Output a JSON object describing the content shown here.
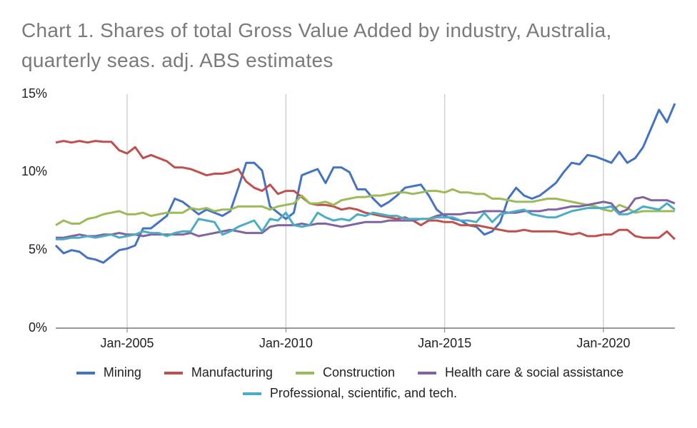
{
  "chart_data": {
    "type": "line",
    "title": "Chart 1. Shares of total Gross Value Added by industry, Australia, quarterly seas. adj. ABS estimates",
    "x": [
      2002.75,
      2003,
      2003.25,
      2003.5,
      2003.75,
      2004,
      2004.25,
      2004.5,
      2004.75,
      2005,
      2005.25,
      2005.5,
      2005.75,
      2006,
      2006.25,
      2006.5,
      2006.75,
      2007,
      2007.25,
      2007.5,
      2007.75,
      2008,
      2008.25,
      2008.5,
      2008.75,
      2009,
      2009.25,
      2009.5,
      2009.75,
      2010,
      2010.25,
      2010.5,
      2010.75,
      2011,
      2011.25,
      2011.5,
      2011.75,
      2012,
      2012.25,
      2012.5,
      2012.75,
      2013,
      2013.25,
      2013.5,
      2013.75,
      2014,
      2014.25,
      2014.5,
      2014.75,
      2015,
      2015.25,
      2015.5,
      2015.75,
      2016,
      2016.25,
      2016.5,
      2016.75,
      2017,
      2017.25,
      2017.5,
      2017.75,
      2018,
      2018.25,
      2018.5,
      2018.75,
      2019,
      2019.25,
      2019.5,
      2019.75,
      2020,
      2020.25,
      2020.5,
      2020.75,
      2021,
      2021.25,
      2021.5,
      2021.75,
      2022,
      2022.25
    ],
    "xlim": [
      2002.75,
      2022.25
    ],
    "xticks": [
      {
        "value": 2005,
        "label": "Jan-2005"
      },
      {
        "value": 2010,
        "label": "Jan-2010"
      },
      {
        "value": 2015,
        "label": "Jan-2015"
      },
      {
        "value": 2020,
        "label": "Jan-2020"
      }
    ],
    "ylim": [
      0,
      15
    ],
    "yticks": [
      {
        "value": 0,
        "label": "0%"
      },
      {
        "value": 5,
        "label": "5%"
      },
      {
        "value": 10,
        "label": "10%"
      },
      {
        "value": 15,
        "label": "15%"
      }
    ],
    "grid": "x",
    "series": [
      {
        "name": "Mining",
        "color": "#4472c4",
        "values": [
          5.3,
          4.8,
          5.0,
          4.9,
          4.5,
          4.4,
          4.2,
          4.6,
          5.0,
          5.1,
          5.3,
          6.4,
          6.4,
          6.8,
          7.2,
          8.3,
          8.1,
          7.7,
          7.3,
          7.6,
          7.4,
          7.2,
          7.5,
          9.0,
          10.6,
          10.6,
          10.1,
          7.8,
          7.4,
          7.0,
          7.4,
          9.8,
          10.0,
          10.2,
          9.3,
          10.3,
          10.3,
          10.0,
          8.9,
          8.9,
          8.3,
          7.8,
          8.1,
          8.5,
          9.0,
          9.1,
          9.2,
          8.5,
          7.6,
          7.2,
          7.0,
          6.9,
          6.6,
          6.5,
          6.0,
          6.2,
          6.8,
          8.3,
          9.0,
          8.5,
          8.3,
          8.5,
          8.9,
          9.3,
          10.0,
          10.6,
          10.5,
          11.1,
          11.0,
          10.8,
          10.6,
          11.3,
          10.6,
          10.9,
          11.6,
          12.8,
          14.0,
          13.2,
          14.4
        ]
      },
      {
        "name": "Manufacturing",
        "color": "#c0504d",
        "values": [
          11.9,
          12.0,
          11.9,
          12.0,
          11.9,
          12.0,
          11.95,
          11.95,
          11.4,
          11.2,
          11.6,
          10.9,
          11.1,
          10.9,
          10.7,
          10.3,
          10.3,
          10.2,
          10.0,
          9.8,
          9.9,
          9.9,
          10.0,
          10.2,
          9.4,
          9.0,
          8.8,
          9.2,
          8.6,
          8.8,
          8.8,
          8.4,
          8.0,
          7.9,
          7.9,
          7.8,
          7.6,
          7.7,
          7.6,
          7.4,
          7.3,
          7.2,
          7.1,
          7.0,
          7.1,
          6.9,
          6.6,
          6.9,
          6.9,
          6.8,
          6.8,
          6.6,
          6.6,
          6.6,
          6.5,
          6.4,
          6.3,
          6.2,
          6.2,
          6.3,
          6.2,
          6.2,
          6.2,
          6.2,
          6.1,
          6.0,
          6.1,
          5.9,
          5.9,
          6.0,
          6.0,
          6.3,
          6.3,
          5.9,
          5.8,
          5.8,
          5.8,
          6.2,
          5.7
        ]
      },
      {
        "name": "Construction",
        "color": "#9bbb59",
        "values": [
          6.6,
          6.9,
          6.7,
          6.7,
          7.0,
          7.1,
          7.3,
          7.4,
          7.5,
          7.3,
          7.3,
          7.4,
          7.2,
          7.3,
          7.4,
          7.4,
          7.4,
          7.7,
          7.6,
          7.7,
          7.5,
          7.6,
          7.6,
          7.8,
          7.8,
          7.8,
          7.8,
          7.6,
          7.8,
          7.9,
          8.0,
          8.5,
          8.0,
          8.0,
          8.1,
          7.9,
          8.2,
          8.3,
          8.4,
          8.4,
          8.5,
          8.5,
          8.6,
          8.7,
          8.7,
          8.6,
          8.7,
          8.8,
          8.8,
          8.7,
          8.9,
          8.7,
          8.7,
          8.6,
          8.6,
          8.3,
          8.3,
          8.2,
          8.1,
          8.1,
          8.1,
          8.2,
          8.3,
          8.3,
          8.2,
          8.1,
          8.0,
          7.9,
          7.8,
          7.6,
          7.5,
          7.9,
          7.7,
          7.4,
          7.5,
          7.5,
          7.5,
          7.5,
          7.5
        ]
      },
      {
        "name": "Health care & social assistance",
        "color": "#8064a2",
        "values": [
          5.8,
          5.8,
          5.9,
          6.0,
          5.9,
          5.9,
          6.0,
          6.0,
          6.1,
          6.0,
          6.0,
          5.9,
          6.0,
          6.0,
          6.0,
          6.0,
          6.0,
          6.1,
          5.9,
          6.0,
          6.1,
          6.2,
          6.3,
          6.2,
          6.1,
          6.1,
          6.1,
          6.5,
          6.6,
          6.6,
          6.6,
          6.7,
          6.6,
          6.7,
          6.7,
          6.6,
          6.5,
          6.6,
          6.7,
          6.8,
          6.8,
          6.8,
          6.9,
          6.9,
          6.9,
          6.9,
          7.0,
          7.0,
          7.2,
          7.3,
          7.3,
          7.3,
          7.4,
          7.4,
          7.5,
          7.5,
          7.5,
          7.4,
          7.4,
          7.5,
          7.5,
          7.5,
          7.6,
          7.6,
          7.7,
          7.8,
          7.8,
          7.9,
          8.0,
          8.1,
          8.0,
          7.4,
          7.6,
          8.3,
          8.4,
          8.2,
          8.2,
          8.2,
          8.0
        ]
      },
      {
        "name": "Professional, scientific, and tech.",
        "color": "#4bacc6",
        "values": [
          5.7,
          5.7,
          5.8,
          5.8,
          5.9,
          5.8,
          5.9,
          6.0,
          5.8,
          5.9,
          6.0,
          6.2,
          6.1,
          6.1,
          5.9,
          6.1,
          6.2,
          6.2,
          7.0,
          6.9,
          6.8,
          6.0,
          6.2,
          6.5,
          6.7,
          6.9,
          6.2,
          7.0,
          6.9,
          7.4,
          6.6,
          6.5,
          6.6,
          7.4,
          7.1,
          6.9,
          7.0,
          6.9,
          7.3,
          7.2,
          7.4,
          7.3,
          7.2,
          7.2,
          7.0,
          7.0,
          7.0,
          7.0,
          7.1,
          7.1,
          7.1,
          6.9,
          6.9,
          6.8,
          7.4,
          6.8,
          7.3,
          7.4,
          7.5,
          7.6,
          7.3,
          7.2,
          7.1,
          7.1,
          7.3,
          7.5,
          7.6,
          7.7,
          7.7,
          7.7,
          7.8,
          7.3,
          7.3,
          7.5,
          7.8,
          7.7,
          7.6,
          8.0,
          7.6
        ]
      }
    ]
  }
}
